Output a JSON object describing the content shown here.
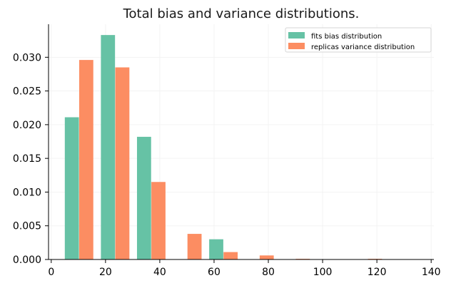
{
  "chart_data": {
    "type": "bar",
    "title": "Total bias and variance distributions.",
    "xlabel": "",
    "ylabel": "",
    "xlim": [
      -1,
      141
    ],
    "ylim": [
      0,
      0.0349
    ],
    "bar_width": 5.2,
    "x_ticks": [
      0,
      20,
      40,
      60,
      80,
      100,
      120,
      140
    ],
    "x_tick_labels": [
      "0",
      "20",
      "40",
      "60",
      "80",
      "100",
      "120",
      "140"
    ],
    "y_ticks": [
      0.0,
      0.005,
      0.01,
      0.015,
      0.02,
      0.025,
      0.03
    ],
    "y_tick_labels": [
      "0.000",
      "0.005",
      "0.010",
      "0.015",
      "0.020",
      "0.025",
      "0.030"
    ],
    "grid": true,
    "legend_position": "top-right",
    "series": [
      {
        "name": "fits bias distribution",
        "color": "#66c2a5",
        "x": [
          7.6,
          20.9,
          34.2,
          60.8
        ],
        "values": [
          0.0211,
          0.0333,
          0.0182,
          0.003
        ]
      },
      {
        "name": "replicas variance distribution",
        "color": "#fc8d62",
        "x": [
          12.9,
          26.2,
          39.5,
          52.8,
          66.1,
          79.4,
          92.7,
          119.3
        ],
        "values": [
          0.0296,
          0.0285,
          0.0115,
          0.0038,
          0.0011,
          0.0006,
          0.0001,
          0.0001
        ]
      }
    ]
  }
}
